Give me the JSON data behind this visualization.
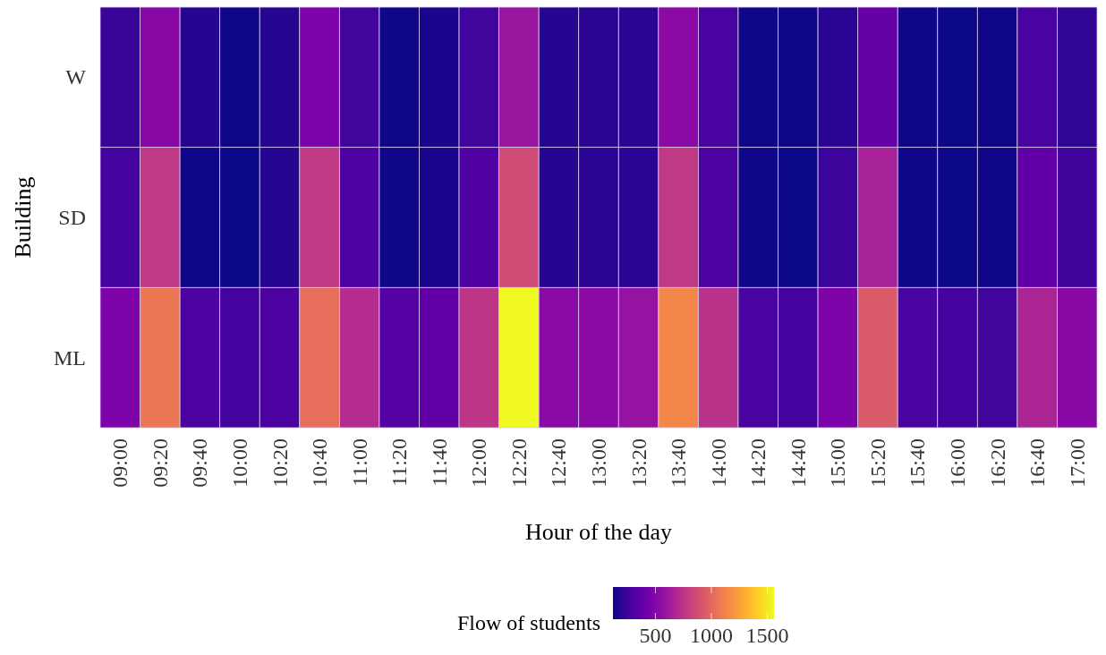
{
  "chart_data": {
    "type": "heatmap",
    "xlabel": "Hour of the day",
    "ylabel": "Building",
    "clabel": "Flow of students",
    "categories": [
      "09:00",
      "09:20",
      "09:40",
      "10:00",
      "10:20",
      "10:40",
      "11:00",
      "11:20",
      "11:40",
      "12:00",
      "12:20",
      "12:40",
      "13:00",
      "13:20",
      "13:40",
      "14:00",
      "14:20",
      "14:40",
      "15:00",
      "15:20",
      "15:40",
      "16:00",
      "16:20",
      "16:40",
      "17:00"
    ],
    "y_categories": [
      "W",
      "SD",
      "ML"
    ],
    "cells": [
      [
        233,
        522,
        175,
        131,
        175,
        478,
        262,
        131,
        146,
        262,
        594,
        175,
        190,
        190,
        536,
        290,
        131,
        131,
        190,
        392,
        131,
        120,
        131,
        290,
        200
      ],
      [
        276,
        767,
        131,
        120,
        175,
        767,
        305,
        131,
        146,
        320,
        868,
        175,
        190,
        190,
        767,
        305,
        131,
        120,
        247,
        652,
        131,
        120,
        131,
        377,
        255
      ],
      [
        478,
        1071,
        305,
        276,
        305,
        1027,
        710,
        334,
        377,
        753,
        1560,
        536,
        536,
        580,
        1143,
        738,
        290,
        276,
        478,
        941,
        290,
        276,
        262,
        666,
        522
      ]
    ],
    "clim": [
      120,
      1560
    ],
    "cticks": [
      500,
      1000,
      1500
    ]
  }
}
